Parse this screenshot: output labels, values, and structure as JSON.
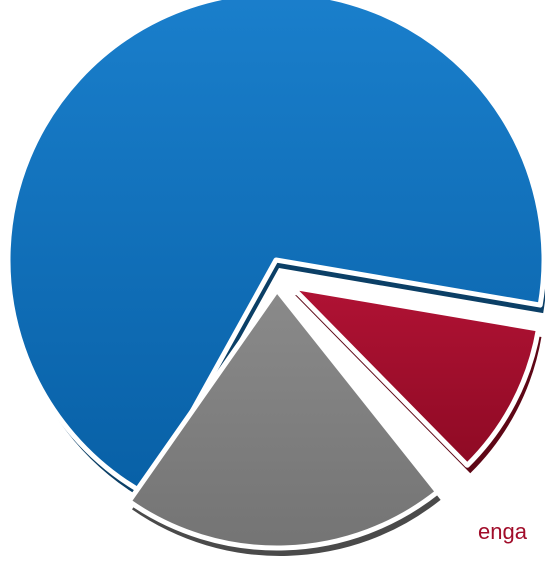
{
  "chart_data": {
    "type": "pie",
    "style": "3d-exploded",
    "slices": [
      {
        "value": 66.5,
        "color": "#0A6EBD",
        "shade": "#0B3F66",
        "label": ""
      },
      {
        "value": 9.5,
        "color": "#A10D2A",
        "shade": "#5E0716",
        "label": "enga"
      },
      {
        "value": 19.5,
        "color": "#7F7F7F",
        "shade": "#4A4A4A",
        "label": ""
      }
    ]
  }
}
